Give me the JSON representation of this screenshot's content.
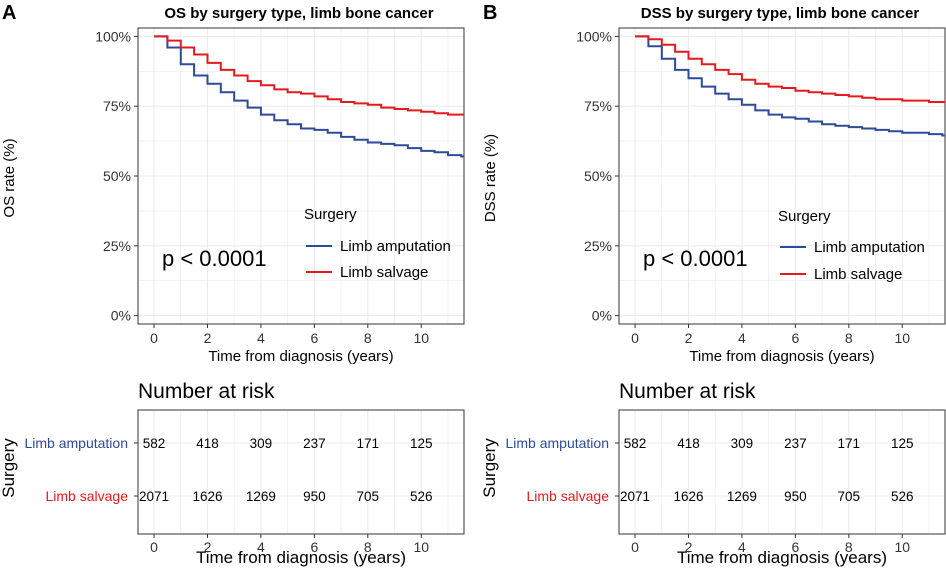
{
  "panels": [
    {
      "label": "A",
      "title": "OS by surgery type, limb bone cancer",
      "ylabel": "OS rate (%)",
      "xlabel": "Time from diagnosis (years)",
      "p_value": "p < 0.0001",
      "legend_title": "Surgery",
      "risk_title": "Number at risk",
      "risk_ylabel": "Surgery",
      "risk_xlabel": "Time from diagnosis (years)"
    },
    {
      "label": "B",
      "title": "DSS by surgery type, limb bone cancer",
      "ylabel": "DSS rate (%)",
      "xlabel": "Time from diagnosis (years)",
      "p_value": "p < 0.0001",
      "legend_title": "Surgery",
      "risk_title": "Number at risk",
      "risk_ylabel": "Surgery",
      "risk_xlabel": "Time from diagnosis (years)"
    }
  ],
  "colors": {
    "amputation": "#2E4B9A",
    "salvage": "#E41A1C"
  },
  "chart_data": [
    {
      "type": "line",
      "title": "OS by surgery type, limb bone cancer",
      "xlabel": "Time from diagnosis (years)",
      "ylabel": "OS rate (%)",
      "xlim": [
        -0.6,
        11.6
      ],
      "ylim": [
        -0.03,
        1.03
      ],
      "x_ticks": [
        "0",
        "2",
        "4",
        "6",
        "8",
        "10"
      ],
      "y_ticks": [
        "0%",
        "25%",
        "50%",
        "75%",
        "100%"
      ],
      "legend": [
        "Limb amputation",
        "Limb salvage"
      ],
      "series": [
        {
          "name": "Limb amputation",
          "x": [
            0,
            0.5,
            1,
            1.5,
            2,
            2.5,
            3,
            3.5,
            4,
            4.5,
            5,
            5.5,
            6,
            6.5,
            7,
            7.5,
            8,
            8.5,
            9,
            9.5,
            10,
            10.5,
            11,
            11.5
          ],
          "y": [
            1.0,
            0.96,
            0.9,
            0.86,
            0.83,
            0.8,
            0.77,
            0.745,
            0.72,
            0.7,
            0.685,
            0.67,
            0.665,
            0.655,
            0.64,
            0.63,
            0.62,
            0.615,
            0.61,
            0.6,
            0.59,
            0.585,
            0.575,
            0.57
          ]
        },
        {
          "name": "Limb salvage",
          "x": [
            0,
            0.5,
            1,
            1.5,
            2,
            2.5,
            3,
            3.5,
            4,
            4.5,
            5,
            5.5,
            6,
            6.5,
            7,
            7.5,
            8,
            8.5,
            9,
            9.5,
            10,
            10.5,
            11,
            11.5
          ],
          "y": [
            1.0,
            0.985,
            0.96,
            0.935,
            0.905,
            0.88,
            0.86,
            0.84,
            0.825,
            0.81,
            0.8,
            0.795,
            0.785,
            0.775,
            0.765,
            0.76,
            0.755,
            0.745,
            0.74,
            0.735,
            0.73,
            0.725,
            0.72,
            0.72
          ]
        }
      ],
      "risk_table": {
        "title": "Number at risk",
        "times": [
          "0",
          "2",
          "4",
          "6",
          "8",
          "10"
        ],
        "rows": [
          {
            "label": "Limb amputation",
            "values": [
              "582",
              "418",
              "309",
              "237",
              "171",
              "125"
            ]
          },
          {
            "label": "Limb salvage",
            "values": [
              "2071",
              "1626",
              "1269",
              "950",
              "705",
              "526"
            ]
          }
        ]
      }
    },
    {
      "type": "line",
      "title": "DSS by surgery type, limb bone cancer",
      "xlabel": "Time from diagnosis (years)",
      "ylabel": "DSS rate (%)",
      "xlim": [
        -0.6,
        11.6
      ],
      "ylim": [
        -0.03,
        1.03
      ],
      "x_ticks": [
        "0",
        "2",
        "4",
        "6",
        "8",
        "10"
      ],
      "y_ticks": [
        "0%",
        "25%",
        "50%",
        "75%",
        "100%"
      ],
      "legend": [
        "Limb amputation",
        "Limb salvage"
      ],
      "series": [
        {
          "name": "Limb amputation",
          "x": [
            0,
            0.5,
            1,
            1.5,
            2,
            2.5,
            3,
            3.5,
            4,
            4.5,
            5,
            5.5,
            6,
            6.5,
            7,
            7.5,
            8,
            8.5,
            9,
            9.5,
            10,
            10.5,
            11,
            11.5
          ],
          "y": [
            1.0,
            0.965,
            0.92,
            0.88,
            0.85,
            0.82,
            0.795,
            0.775,
            0.755,
            0.735,
            0.72,
            0.71,
            0.705,
            0.695,
            0.685,
            0.68,
            0.675,
            0.67,
            0.665,
            0.66,
            0.655,
            0.655,
            0.65,
            0.645
          ]
        },
        {
          "name": "Limb salvage",
          "x": [
            0,
            0.5,
            1,
            1.5,
            2,
            2.5,
            3,
            3.5,
            4,
            4.5,
            5,
            5.5,
            6,
            6.5,
            7,
            7.5,
            8,
            8.5,
            9,
            9.5,
            10,
            10.5,
            11,
            11.5
          ],
          "y": [
            1.0,
            0.99,
            0.97,
            0.945,
            0.92,
            0.9,
            0.88,
            0.865,
            0.845,
            0.83,
            0.82,
            0.815,
            0.805,
            0.8,
            0.795,
            0.79,
            0.785,
            0.78,
            0.775,
            0.775,
            0.77,
            0.77,
            0.765,
            0.765
          ]
        }
      ],
      "risk_table": {
        "title": "Number at risk",
        "times": [
          "0",
          "2",
          "4",
          "6",
          "8",
          "10"
        ],
        "rows": [
          {
            "label": "Limb amputation",
            "values": [
              "582",
              "418",
              "309",
              "237",
              "171",
              "125"
            ]
          },
          {
            "label": "Limb salvage",
            "values": [
              "2071",
              "1626",
              "1269",
              "950",
              "705",
              "526"
            ]
          }
        ]
      }
    }
  ]
}
